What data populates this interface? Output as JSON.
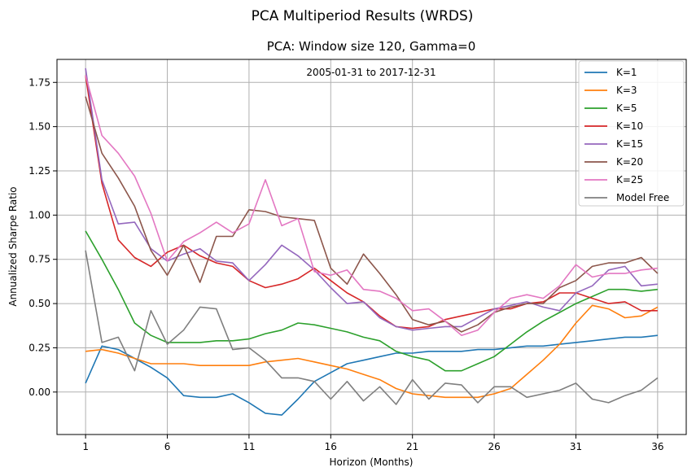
{
  "suptitle": "PCA Multiperiod Results (WRDS)",
  "chart_data": {
    "type": "line",
    "title": "PCA: Window size 120, Gamma=0",
    "annotation": "2005-01-31 to 2017-12-31",
    "xlabel": "Horizon (Months)",
    "ylabel": "Annualized Sharpe Ratio",
    "xlim": [
      -0.75,
      37.75
    ],
    "ylim": [
      -0.24,
      1.88
    ],
    "xticks": [
      1,
      6,
      11,
      16,
      21,
      26,
      31,
      36
    ],
    "yticks": [
      0.0,
      0.25,
      0.5,
      0.75,
      1.0,
      1.25,
      1.5,
      1.75
    ],
    "ytick_labels": [
      "0.00",
      "0.25",
      "0.50",
      "0.75",
      "1.00",
      "1.25",
      "1.50",
      "1.75"
    ],
    "grid": true,
    "legend_position": "top-right",
    "x": [
      1,
      2,
      3,
      4,
      5,
      6,
      7,
      8,
      9,
      10,
      11,
      12,
      13,
      14,
      15,
      16,
      17,
      18,
      19,
      20,
      21,
      22,
      23,
      24,
      25,
      26,
      27,
      28,
      29,
      30,
      31,
      32,
      33,
      34,
      35,
      36
    ],
    "series": [
      {
        "name": "K=1",
        "color": "#1f77b4",
        "values": [
          0.05,
          0.26,
          0.24,
          0.19,
          0.14,
          0.08,
          -0.02,
          -0.03,
          -0.03,
          -0.01,
          -0.06,
          -0.12,
          -0.13,
          -0.04,
          0.06,
          0.11,
          0.16,
          0.18,
          0.2,
          0.22,
          0.22,
          0.23,
          0.23,
          0.23,
          0.24,
          0.24,
          0.25,
          0.26,
          0.26,
          0.27,
          0.28,
          0.29,
          0.3,
          0.31,
          0.31,
          0.32
        ]
      },
      {
        "name": "K=3",
        "color": "#ff7f0e",
        "values": [
          0.23,
          0.24,
          0.22,
          0.19,
          0.16,
          0.16,
          0.16,
          0.15,
          0.15,
          0.15,
          0.15,
          0.17,
          0.18,
          0.19,
          0.17,
          0.15,
          0.13,
          0.1,
          0.07,
          0.02,
          -0.01,
          -0.02,
          -0.03,
          -0.03,
          -0.03,
          -0.01,
          0.02,
          0.1,
          0.18,
          0.27,
          0.39,
          0.49,
          0.47,
          0.42,
          0.43,
          0.48
        ]
      },
      {
        "name": "K=5",
        "color": "#2ca02c",
        "values": [
          0.91,
          0.75,
          0.58,
          0.39,
          0.32,
          0.28,
          0.28,
          0.28,
          0.29,
          0.29,
          0.3,
          0.33,
          0.35,
          0.39,
          0.38,
          0.36,
          0.34,
          0.31,
          0.29,
          0.23,
          0.2,
          0.18,
          0.12,
          0.12,
          0.16,
          0.2,
          0.27,
          0.34,
          0.4,
          0.45,
          0.5,
          0.54,
          0.58,
          0.58,
          0.57,
          0.58
        ]
      },
      {
        "name": "K=10",
        "color": "#d62728",
        "values": [
          1.79,
          1.18,
          0.86,
          0.76,
          0.71,
          0.79,
          0.83,
          0.77,
          0.73,
          0.71,
          0.63,
          0.59,
          0.61,
          0.64,
          0.7,
          0.63,
          0.56,
          0.51,
          0.43,
          0.37,
          0.36,
          0.37,
          0.41,
          0.43,
          0.45,
          0.47,
          0.47,
          0.5,
          0.51,
          0.56,
          0.56,
          0.53,
          0.5,
          0.51,
          0.46,
          0.46
        ]
      },
      {
        "name": "K=15",
        "color": "#9467bd",
        "values": [
          1.83,
          1.2,
          0.95,
          0.96,
          0.81,
          0.74,
          0.78,
          0.81,
          0.74,
          0.73,
          0.63,
          0.72,
          0.83,
          0.77,
          0.69,
          0.59,
          0.5,
          0.51,
          0.42,
          0.37,
          0.35,
          0.36,
          0.37,
          0.37,
          0.42,
          0.47,
          0.49,
          0.51,
          0.48,
          0.46,
          0.56,
          0.6,
          0.69,
          0.71,
          0.6,
          0.61
        ]
      },
      {
        "name": "K=20",
        "color": "#8c564b",
        "values": [
          1.67,
          1.35,
          1.21,
          1.05,
          0.8,
          0.66,
          0.83,
          0.62,
          0.88,
          0.88,
          1.03,
          1.02,
          0.99,
          0.98,
          0.97,
          0.7,
          0.61,
          0.78,
          0.67,
          0.55,
          0.41,
          0.38,
          0.4,
          0.34,
          0.38,
          0.45,
          0.48,
          0.5,
          0.5,
          0.59,
          0.63,
          0.71,
          0.73,
          0.73,
          0.76,
          0.67
        ]
      },
      {
        "name": "K=25",
        "color": "#e377c2",
        "values": [
          1.79,
          1.45,
          1.35,
          1.22,
          1.01,
          0.74,
          0.85,
          0.9,
          0.96,
          0.9,
          0.95,
          1.2,
          0.94,
          0.98,
          0.68,
          0.66,
          0.69,
          0.58,
          0.57,
          0.53,
          0.46,
          0.47,
          0.4,
          0.32,
          0.35,
          0.45,
          0.53,
          0.55,
          0.53,
          0.6,
          0.72,
          0.65,
          0.67,
          0.67,
          0.69,
          0.7
        ]
      },
      {
        "name": "Model Free",
        "color": "#7f7f7f",
        "values": [
          0.8,
          0.28,
          0.31,
          0.12,
          0.46,
          0.27,
          0.35,
          0.48,
          0.47,
          0.24,
          0.25,
          0.18,
          0.08,
          0.08,
          0.06,
          -0.04,
          0.06,
          -0.05,
          0.03,
          -0.07,
          0.07,
          -0.04,
          0.05,
          0.04,
          -0.06,
          0.03,
          0.03,
          -0.03,
          -0.01,
          0.01,
          0.05,
          -0.04,
          -0.06,
          -0.02,
          0.01,
          0.08
        ]
      }
    ]
  }
}
